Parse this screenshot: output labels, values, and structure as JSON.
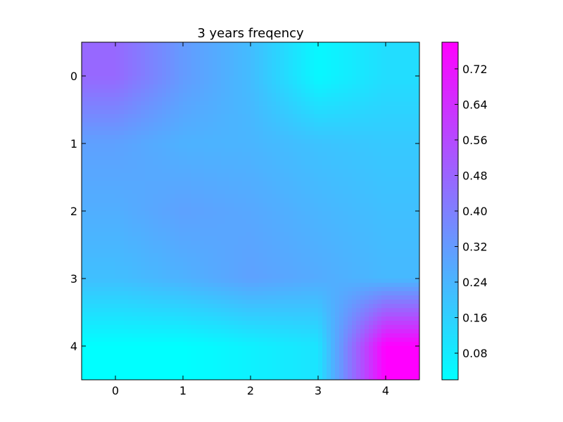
{
  "chart_data": {
    "type": "heatmap",
    "title": "3 years freqency",
    "xlabel": "",
    "ylabel": "",
    "x_ticks": [
      0,
      1,
      2,
      3,
      4
    ],
    "y_ticks": [
      0,
      1,
      2,
      3,
      4
    ],
    "xlim": [
      -0.5,
      4.5
    ],
    "ylim": [
      4.5,
      -0.5
    ],
    "rows": [
      0,
      1,
      2,
      3,
      4
    ],
    "columns": [
      0,
      1,
      2,
      3,
      4
    ],
    "values": [
      [
        0.47,
        0.32,
        0.22,
        0.04,
        0.12
      ],
      [
        0.3,
        0.25,
        0.24,
        0.2,
        0.18
      ],
      [
        0.26,
        0.3,
        0.28,
        0.24,
        0.21
      ],
      [
        0.21,
        0.25,
        0.3,
        0.27,
        0.23
      ],
      [
        0.02,
        0.02,
        0.06,
        0.1,
        0.78
      ]
    ],
    "interpolation": "bilinear",
    "colormap": "cool",
    "colormap_start": "#00ffff",
    "colormap_end": "#ff00ff",
    "colorbar": {
      "min": 0.02,
      "max": 0.78,
      "ticks": [
        0.08,
        0.16,
        0.24,
        0.32,
        0.4,
        0.48,
        0.56,
        0.64,
        0.72
      ]
    },
    "grid": false,
    "legend": "none"
  }
}
